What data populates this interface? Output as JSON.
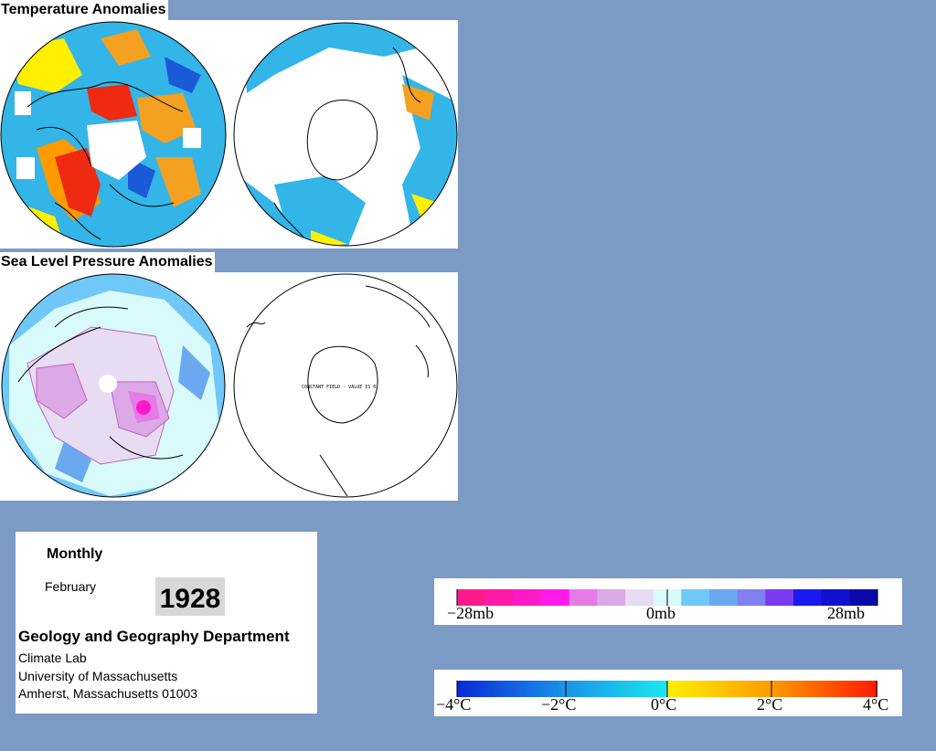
{
  "temperature": {
    "title": "Temperature Anomalies"
  },
  "pressure": {
    "title": "Sea Level Pressure Anomalies",
    "south_note": "CONSTANT FIELD - VALUE IS 0"
  },
  "info": {
    "period": "Monthly",
    "month": "February",
    "year": "1928",
    "department": "Geology and Geography Department",
    "lab": "Climate Lab",
    "university": "University of Massachusetts",
    "address": "Amherst, Massachusetts 01003"
  },
  "pressure_legend": {
    "ticks": [
      "−28mb",
      "0mb",
      "28mb"
    ],
    "colors": [
      "#ff1a8c",
      "#ff1aa6",
      "#ff1ac8",
      "#ff1aea",
      "#e67ae6",
      "#dca8e6",
      "#e8dcf2",
      "#d8fafa",
      "#70c8f8",
      "#6aa8f0",
      "#8080f0",
      "#7a3af0",
      "#1a1af0",
      "#1010d0",
      "#0a0aaa"
    ]
  },
  "temperature_legend": {
    "ticks": [
      "−4°C",
      "−2°C",
      "0°C",
      "2°C",
      "4°C"
    ],
    "range": [
      -4,
      4
    ],
    "colors": {
      "cold_max": "#0a2ad8",
      "cold_mid": "#1a90e8",
      "neutral_cold": "#1ae8f0",
      "neutral_warm": "#fff000",
      "warm_mid": "#ff9a00",
      "warm_max": "#ff1a00"
    }
  },
  "colors": {
    "background": "#7b9bc4",
    "ocean_cold": "#33b5e8",
    "warm_anomaly": "#f4a020",
    "hot_anomaly": "#ee2a10",
    "missing": "#ffffff"
  }
}
